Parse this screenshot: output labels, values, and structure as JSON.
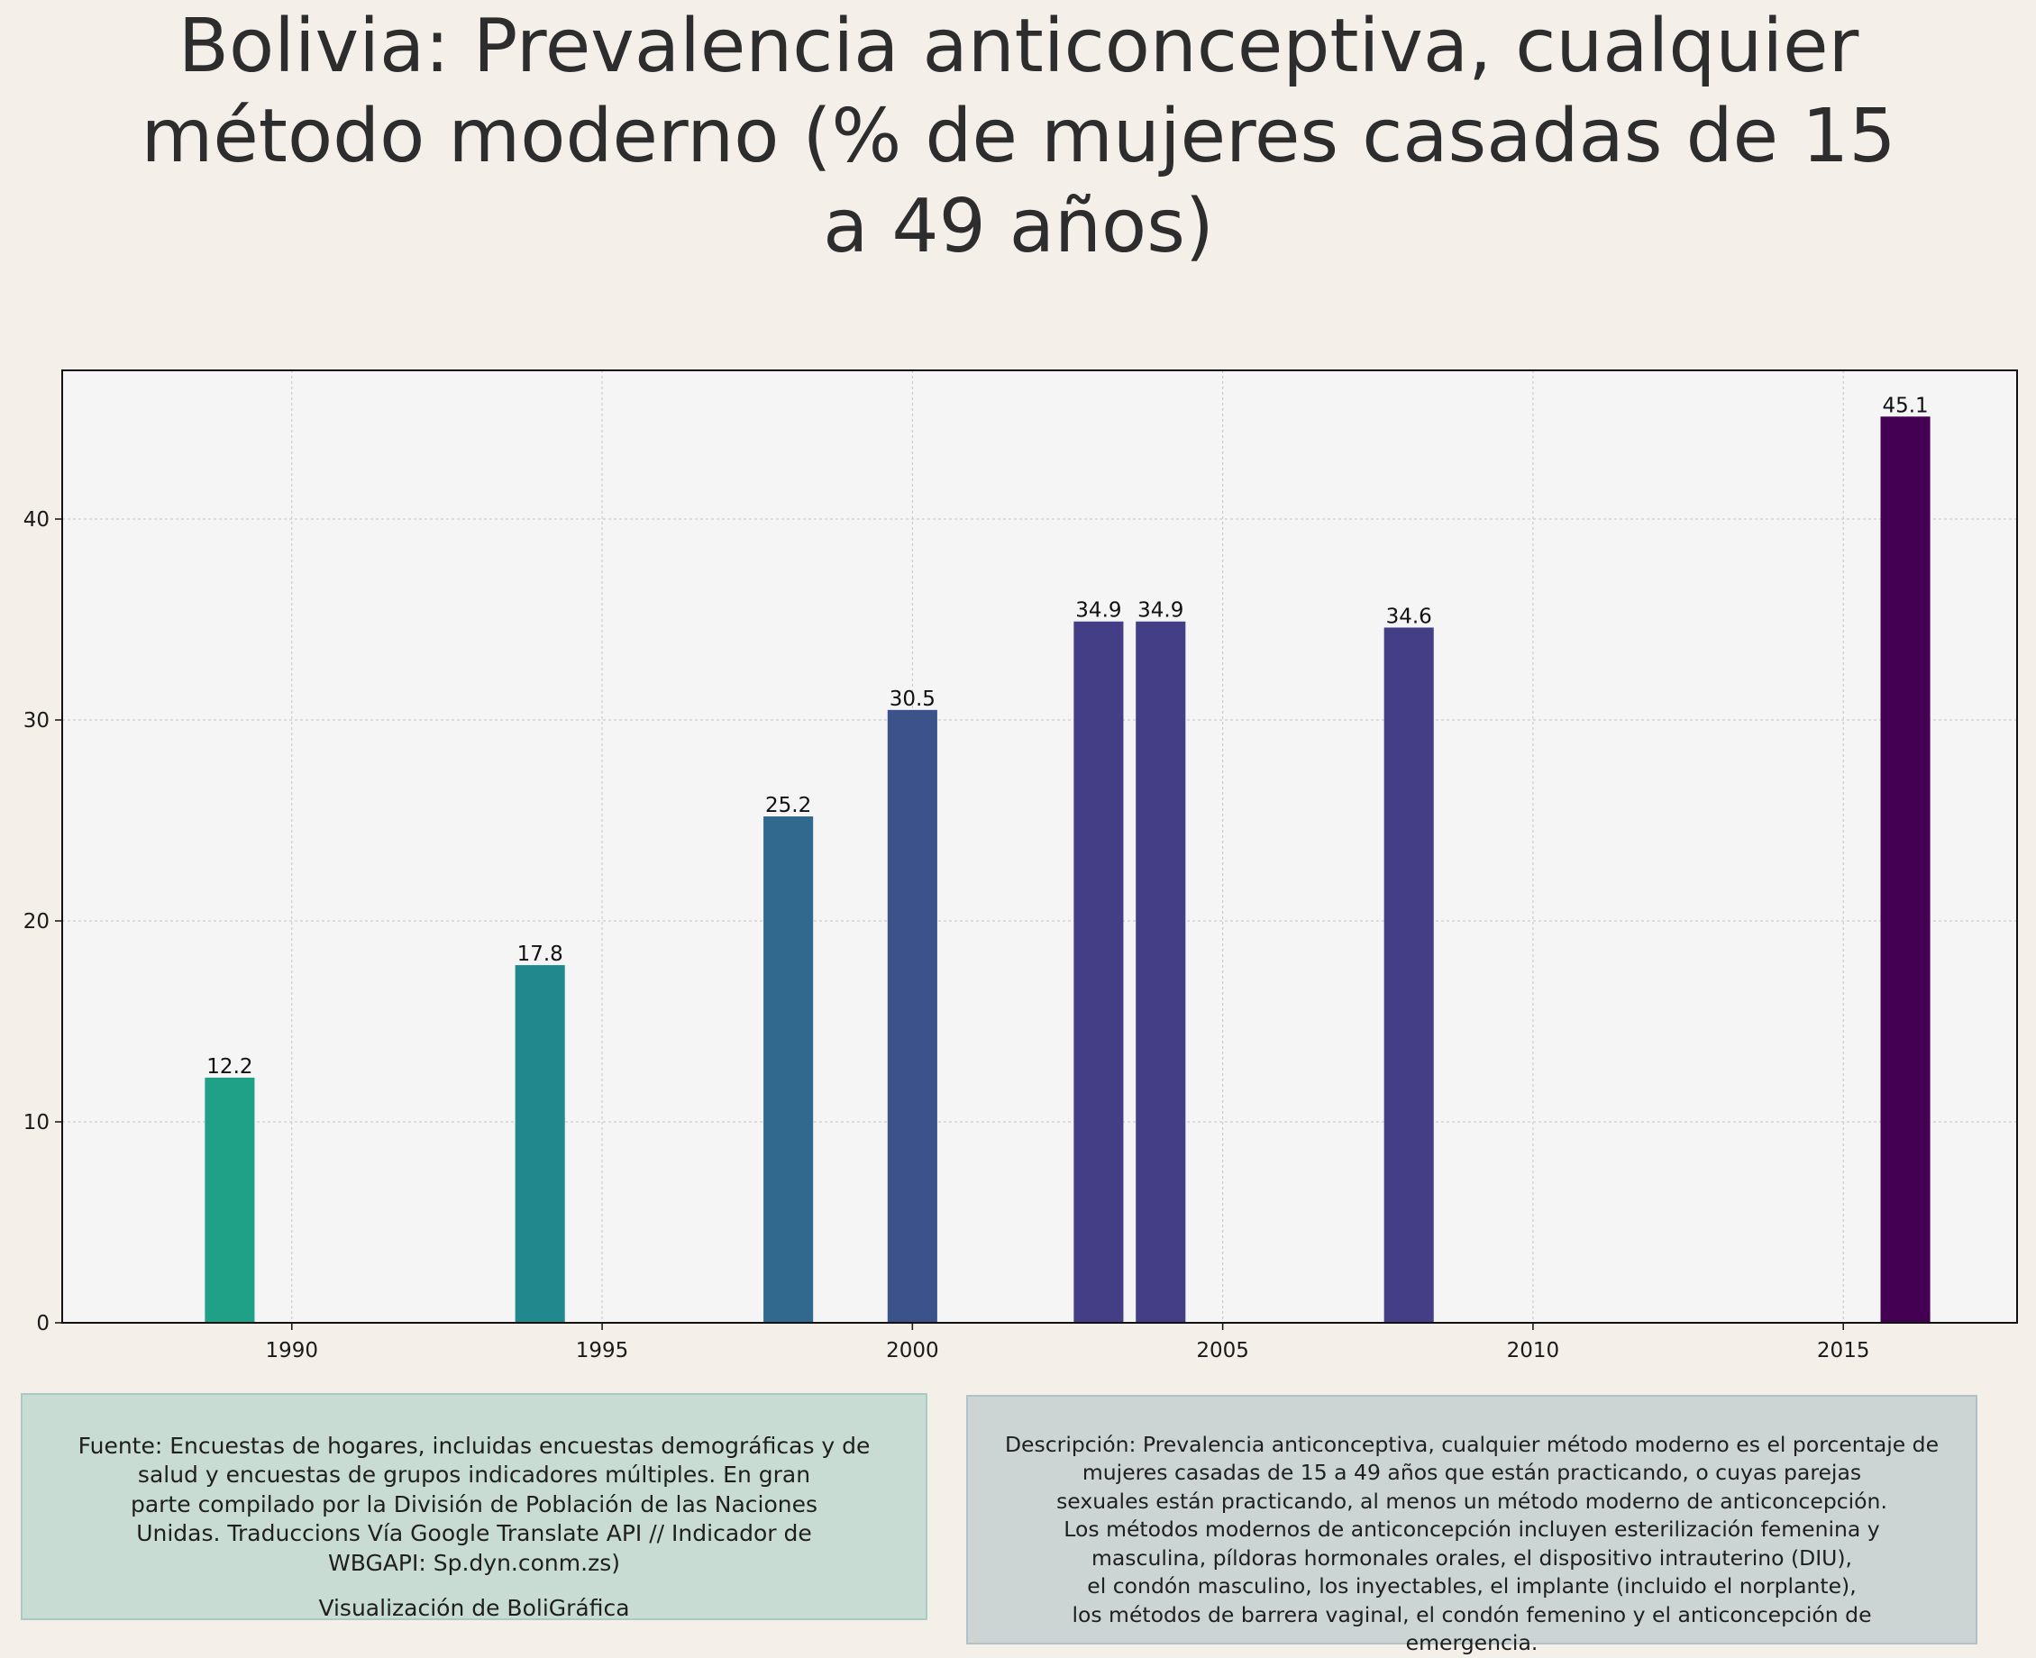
{
  "title": "Bolivia:  Prevalencia anticonceptiva, cualquier\nmétodo moderno (% de mujeres casadas de 15\na 49 años)",
  "chart_data": {
    "type": "bar",
    "title": "Bolivia:  Prevalencia anticonceptiva, cualquier método moderno (% de mujeres casadas de 15 a 49 años)",
    "xlabel": "",
    "ylabel": "",
    "x": [
      1989,
      1994,
      1998,
      2000,
      2003,
      2004,
      2008,
      2016
    ],
    "values": [
      12.2,
      17.8,
      25.2,
      30.5,
      34.9,
      34.9,
      34.6,
      45.1
    ],
    "data_labels": [
      "12.2",
      "17.8",
      "25.2",
      "30.5",
      "34.9",
      "34.9",
      "34.6",
      "45.1"
    ],
    "bar_colors": [
      "#1fa187",
      "#21898e",
      "#31688e",
      "#3b528b",
      "#433e85",
      "#433e85",
      "#433e85",
      "#440154"
    ],
    "xlim": [
      1986.3,
      2017.8
    ],
    "ylim": [
      0,
      47.4
    ],
    "xticks": [
      1990,
      1995,
      2000,
      2005,
      2010,
      2015
    ],
    "yticks": [
      0,
      10,
      20,
      30,
      40
    ],
    "grid": true,
    "plot_background": "#f5f5f5"
  },
  "footer": {
    "source_text": "Fuente: Encuestas de hogares, incluidas encuestas demográficas y de\nsalud y encuestas de grupos indicadores múltiples. En gran\nparte compilado por la División de Población de las Naciones\nUnidas. Traduccions Vía Google Translate API // Indicador de\nWBGAPI: Sp.dyn.conm.zs)",
    "credit": "Visualización de BoliGráfica",
    "description": "Descripción: Prevalencia anticonceptiva, cualquier método moderno es el porcentaje de\nmujeres casadas de 15 a 49 años que están practicando, o cuyas parejas\nsexuales están practicando, al menos un método moderno de anticoncepción.\nLos métodos modernos de anticoncepción incluyen esterilización femenina y\nmasculina, píldoras hormonales orales, el dispositivo intrauterino (DIU),\nel condón masculino, los inyectables, el implante (incluido el norplante),\nlos métodos de barrera vaginal, el condón femenino y el anticoncepción de\nemergencia."
  }
}
